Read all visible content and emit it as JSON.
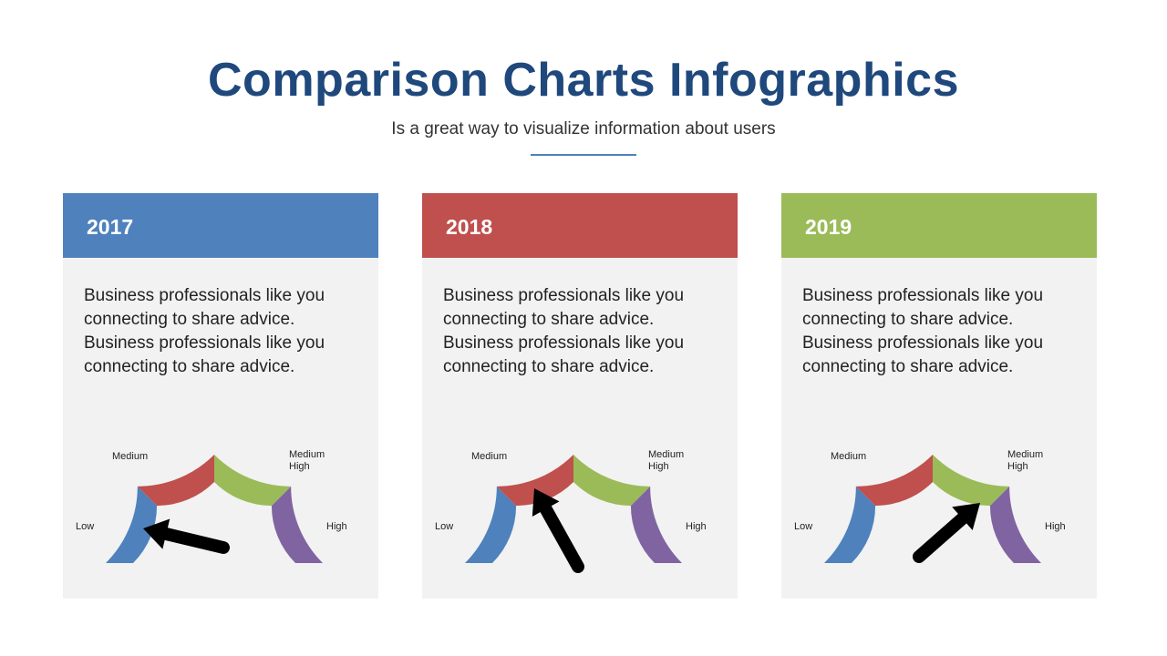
{
  "header": {
    "title": "Comparison Charts Infographics",
    "subtitle": "Is a great way to visualize information about users"
  },
  "gauge_labels": {
    "low": "Low",
    "medium": "Medium",
    "medium_high_line1": "Medium",
    "medium_high_line2": "High",
    "high": "High"
  },
  "segment_colors": {
    "low": "#4f81bd",
    "medium": "#c0504d",
    "medium_high": "#9bbb59",
    "high": "#8064a2"
  },
  "cards": [
    {
      "year": "2017",
      "color": "#4f81bd",
      "text": "Business professionals like you connecting to share advice. Business professionals like you connecting to share advice.",
      "level": "Low"
    },
    {
      "year": "2018",
      "color": "#c0504d",
      "text": "Business professionals like you connecting to share advice. Business professionals like you connecting to share advice.",
      "level": "Medium"
    },
    {
      "year": "2019",
      "color": "#9bbb59",
      "text": "Business professionals like you connecting to share advice. Business professionals like you connecting to share advice.",
      "level": "Medium High"
    }
  ]
}
